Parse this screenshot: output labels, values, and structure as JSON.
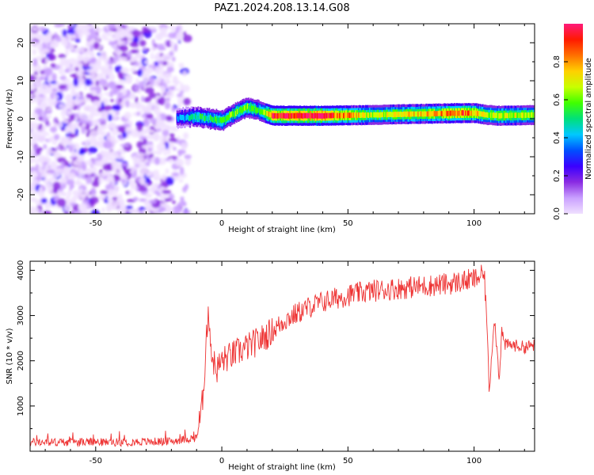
{
  "title": "PAZ1.2024.208.13.14.G08",
  "colors": {
    "snr_line": "#ee3333",
    "frame": "#000000",
    "colormap": [
      "#f0e0ff",
      "#c9a0ff",
      "#8a2be2",
      "#3a00ff",
      "#0050ff",
      "#00c8ff",
      "#00e07a",
      "#40ff00",
      "#c8ff00",
      "#ffd000",
      "#ff7000",
      "#ff1a00",
      "#ff1a7a"
    ]
  },
  "chart_data": [
    {
      "type": "heatmap",
      "title": "",
      "xlabel": "Height of straight line (km)",
      "ylabel": "Frequency (Hz)",
      "xlim": [
        -76,
        124
      ],
      "ylim": [
        -25,
        25
      ],
      "xticks": [
        -50,
        0,
        50,
        100
      ],
      "yticks": [
        -20,
        -10,
        0,
        10,
        20
      ],
      "colorbar": {
        "label": "Normalized spectral amplitude",
        "range": [
          0,
          1
        ],
        "ticks": [
          "0.0",
          "0.2",
          "0.4",
          "0.6",
          "0.8"
        ]
      },
      "description_points": {
        "noise_region_km": [
          -76,
          -12
        ],
        "ridge_x": [
          -18,
          -10,
          0,
          5,
          10,
          15,
          20,
          40,
          60,
          80,
          95,
          100,
          105,
          110,
          124
        ],
        "ridge_freq": [
          0.2,
          0.5,
          -0.5,
          1.5,
          3.0,
          2.0,
          0.8,
          0.8,
          1.0,
          1.3,
          1.5,
          1.5,
          1.0,
          0.8,
          1.0
        ],
        "ridge_amp": [
          0.3,
          0.45,
          0.5,
          0.55,
          0.55,
          0.5,
          0.85,
          0.9,
          0.6,
          0.7,
          0.8,
          0.75,
          0.6,
          0.65,
          0.6
        ]
      }
    },
    {
      "type": "line",
      "title": "",
      "xlabel": "Height of straight line (km)",
      "ylabel": "SNR (10 * v/v)",
      "xlim": [
        -76,
        124
      ],
      "ylim": [
        0,
        4200
      ],
      "xticks": [
        -50,
        0,
        50,
        100
      ],
      "yticks": [
        1000,
        2000,
        3000,
        4000
      ],
      "series": [
        {
          "x": [
            -76,
            -60,
            -40,
            -20,
            -10,
            -8,
            -7,
            -6,
            -5,
            -4,
            -2,
            0,
            5,
            10,
            15,
            20,
            25,
            30,
            35,
            40,
            50,
            60,
            70,
            80,
            90,
            95,
            100,
            104,
            105,
            106,
            108,
            110,
            111,
            112,
            115,
            120,
            124
          ],
          "y": [
            200,
            200,
            200,
            220,
            300,
            900,
            1600,
            2700,
            3000,
            2100,
            1800,
            2000,
            2150,
            2300,
            2450,
            2650,
            2900,
            3050,
            3200,
            3300,
            3450,
            3550,
            3600,
            3650,
            3700,
            3750,
            3800,
            3900,
            3000,
            1300,
            3000,
            1600,
            2700,
            2350,
            2350,
            2300,
            2350
          ]
        }
      ]
    }
  ]
}
